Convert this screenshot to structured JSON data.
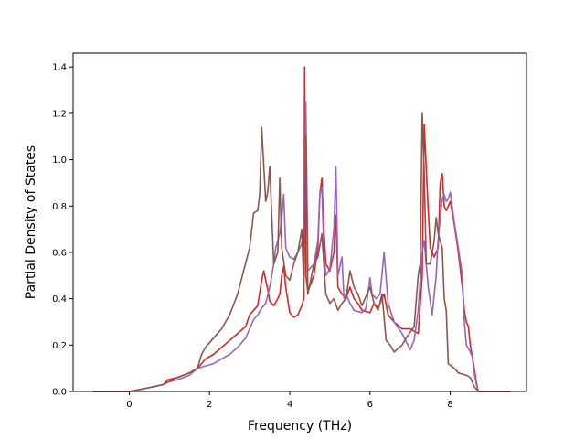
{
  "chart_data": {
    "type": "line",
    "title": "",
    "xlabel": "Frequency (THz)",
    "ylabel": "Partial Density of States",
    "xlim": [
      -1.4,
      9.9
    ],
    "ylim": [
      0,
      1.46
    ],
    "xticks": [
      0,
      2,
      4,
      6,
      8
    ],
    "xtick_labels": [
      "0",
      "2",
      "4",
      "6",
      "8"
    ],
    "yticks": [
      0,
      0.2,
      0.4,
      0.6,
      0.8,
      1.0,
      1.2,
      1.4
    ],
    "ytick_labels": [
      "0.0",
      "0.2",
      "0.4",
      "0.6",
      "0.8",
      "1.0",
      "1.2",
      "1.4"
    ],
    "grid": false,
    "legend": false,
    "series": [
      {
        "color": "#d62728",
        "x": [
          -0.9,
          0.0,
          0.3,
          0.6,
          0.85,
          0.95,
          1.2,
          1.5,
          1.7,
          1.9,
          2.1,
          2.3,
          2.5,
          2.7,
          2.9,
          3.0,
          3.1,
          3.2,
          3.3,
          3.35,
          3.45,
          3.5,
          3.6,
          3.7,
          3.75,
          3.8,
          3.85,
          3.9,
          4.0,
          4.1,
          4.2,
          4.3,
          4.35,
          4.37,
          4.4,
          4.45,
          4.6,
          4.7,
          4.75,
          4.8,
          4.85,
          4.9,
          5.0,
          5.1,
          5.15,
          5.2,
          5.3,
          5.4,
          5.5,
          5.6,
          5.7,
          5.8,
          6.0,
          6.1,
          6.2,
          6.3,
          6.35,
          6.45,
          6.6,
          6.8,
          7.0,
          7.2,
          7.3,
          7.35,
          7.45,
          7.5,
          7.6,
          7.7,
          7.75,
          7.8,
          7.85,
          7.9,
          7.95,
          8.0,
          8.1,
          8.2,
          8.3,
          8.35,
          8.4,
          8.45,
          8.5,
          8.55,
          8.6,
          8.65,
          8.7,
          9.5
        ],
        "values": [
          0,
          0,
          0.01,
          0.02,
          0.03,
          0.05,
          0.06,
          0.08,
          0.1,
          0.14,
          0.16,
          0.19,
          0.22,
          0.25,
          0.28,
          0.33,
          0.35,
          0.37,
          0.48,
          0.52,
          0.44,
          0.39,
          0.37,
          0.4,
          0.42,
          0.5,
          0.54,
          0.45,
          0.34,
          0.32,
          0.33,
          0.37,
          0.4,
          1.4,
          0.5,
          0.43,
          0.5,
          0.62,
          0.85,
          0.92,
          0.7,
          0.55,
          0.52,
          0.6,
          0.76,
          0.45,
          0.42,
          0.4,
          0.45,
          0.4,
          0.38,
          0.35,
          0.34,
          0.38,
          0.36,
          0.4,
          0.42,
          0.33,
          0.3,
          0.27,
          0.27,
          0.25,
          0.5,
          1.15,
          0.78,
          0.62,
          0.58,
          0.62,
          0.9,
          0.94,
          0.8,
          0.78,
          0.8,
          0.82,
          0.72,
          0.6,
          0.45,
          0.35,
          0.3,
          0.28,
          0.2,
          0.15,
          0.1,
          0.04,
          0,
          0
        ]
      },
      {
        "color": "#9467bd",
        "x": [
          -0.9,
          0.0,
          0.3,
          0.6,
          0.85,
          0.95,
          1.2,
          1.5,
          1.7,
          1.9,
          2.1,
          2.3,
          2.5,
          2.7,
          2.9,
          3.0,
          3.1,
          3.2,
          3.3,
          3.4,
          3.5,
          3.6,
          3.65,
          3.75,
          3.8,
          3.85,
          3.9,
          4.0,
          4.1,
          4.2,
          4.3,
          4.35,
          4.4,
          4.45,
          4.6,
          4.7,
          4.75,
          4.8,
          4.85,
          4.9,
          5.0,
          5.1,
          5.15,
          5.2,
          5.3,
          5.35,
          5.4,
          5.5,
          5.6,
          5.8,
          5.9,
          6.0,
          6.05,
          6.15,
          6.25,
          6.35,
          6.45,
          6.6,
          6.8,
          7.0,
          7.1,
          7.2,
          7.3,
          7.35,
          7.45,
          7.55,
          7.65,
          7.7,
          7.8,
          7.85,
          7.9,
          7.95,
          8.0,
          8.1,
          8.2,
          8.3,
          8.35,
          8.4,
          8.5,
          8.55,
          8.6,
          8.65,
          8.7,
          9.5
        ],
        "values": [
          0,
          0,
          0.01,
          0.02,
          0.03,
          0.04,
          0.05,
          0.07,
          0.1,
          0.11,
          0.12,
          0.14,
          0.16,
          0.19,
          0.23,
          0.27,
          0.31,
          0.33,
          0.36,
          0.38,
          0.45,
          0.55,
          0.62,
          0.68,
          0.75,
          0.85,
          0.62,
          0.58,
          0.57,
          0.6,
          0.64,
          0.7,
          1.25,
          0.52,
          0.55,
          0.65,
          0.85,
          0.88,
          0.6,
          0.5,
          0.53,
          0.7,
          0.97,
          0.5,
          0.58,
          0.4,
          0.42,
          0.38,
          0.35,
          0.34,
          0.36,
          0.49,
          0.42,
          0.4,
          0.42,
          0.6,
          0.38,
          0.3,
          0.25,
          0.18,
          0.22,
          0.35,
          0.6,
          0.65,
          0.45,
          0.33,
          0.5,
          0.66,
          0.83,
          0.85,
          0.82,
          0.83,
          0.86,
          0.73,
          0.62,
          0.5,
          0.3,
          0.2,
          0.17,
          0.15,
          0.08,
          0.03,
          0,
          0
        ]
      },
      {
        "color": "#8c564b",
        "x": [
          -0.9,
          0.0,
          0.3,
          0.6,
          0.85,
          0.95,
          1.2,
          1.5,
          1.7,
          1.8,
          1.9,
          2.1,
          2.3,
          2.5,
          2.7,
          2.85,
          3.0,
          3.1,
          3.2,
          3.25,
          3.3,
          3.4,
          3.45,
          3.5,
          3.6,
          3.7,
          3.75,
          3.8,
          3.9,
          4.0,
          4.1,
          4.2,
          4.3,
          4.35,
          4.4,
          4.45,
          4.6,
          4.7,
          4.8,
          4.9,
          5.0,
          5.1,
          5.2,
          5.3,
          5.4,
          5.5,
          5.6,
          5.7,
          5.8,
          6.0,
          6.1,
          6.2,
          6.3,
          6.4,
          6.5,
          6.6,
          6.8,
          6.9,
          7.1,
          7.2,
          7.25,
          7.3,
          7.35,
          7.4,
          7.5,
          7.6,
          7.65,
          7.7,
          7.8,
          7.85,
          7.9,
          7.95,
          8.1,
          8.2,
          8.4,
          8.5,
          8.6,
          8.65,
          8.7,
          9.5
        ],
        "values": [
          0,
          0,
          0.01,
          0.02,
          0.03,
          0.04,
          0.06,
          0.08,
          0.1,
          0.16,
          0.19,
          0.23,
          0.27,
          0.33,
          0.42,
          0.52,
          0.62,
          0.77,
          0.78,
          0.85,
          1.14,
          0.82,
          0.86,
          0.97,
          0.55,
          0.6,
          0.92,
          0.62,
          0.5,
          0.48,
          0.55,
          0.6,
          0.7,
          0.45,
          1.1,
          0.42,
          0.55,
          0.58,
          0.68,
          0.42,
          0.38,
          0.4,
          0.35,
          0.38,
          0.4,
          0.52,
          0.45,
          0.42,
          0.37,
          0.45,
          0.38,
          0.35,
          0.42,
          0.22,
          0.2,
          0.17,
          0.2,
          0.23,
          0.28,
          0.5,
          0.55,
          1.2,
          0.95,
          0.55,
          0.55,
          0.65,
          0.75,
          0.68,
          0.62,
          0.4,
          0.35,
          0.12,
          0.1,
          0.08,
          0.07,
          0.06,
          0.02,
          0.01,
          0,
          0
        ]
      }
    ]
  }
}
